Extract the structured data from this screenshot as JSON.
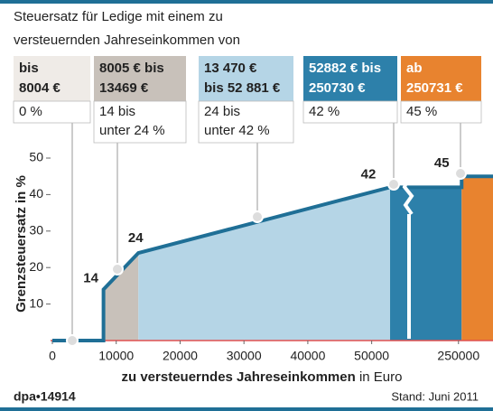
{
  "chart_data": {
    "type": "step",
    "title": [
      "Steuersatz für Ledige mit einem zu",
      "versteuernden Jahreseinkommen von"
    ],
    "brackets": [
      {
        "range": [
          "bis",
          "8004 €"
        ],
        "rate": [
          "0 %"
        ],
        "color": "#efebe7"
      },
      {
        "range": [
          "8005 € bis",
          "13469 €"
        ],
        "rate": [
          "14 bis",
          "unter 24 %"
        ],
        "color": "#c8c1ba"
      },
      {
        "range": [
          "13 470 €",
          "bis 52 881 €"
        ],
        "rate": [
          "24 bis",
          "unter 42 %"
        ],
        "color": "#b5d5e6"
      },
      {
        "range": [
          "52882 € bis",
          "250730 €"
        ],
        "rate": [
          "42 %"
        ],
        "color": "#2d80aa"
      },
      {
        "range": [
          "ab",
          "250731 €"
        ],
        "rate": [
          "45 %"
        ],
        "color": "#e8832f"
      }
    ],
    "ylabel": "Grenzsteuersatz in %",
    "xlabel": "zu versteuerndes Jahreseinkommen",
    "xlabel_unit": "in Euro",
    "series": [
      {
        "name": "Grenzsteuersatz",
        "color": "#1f6f96",
        "x": [
          0,
          8004,
          8005,
          13469,
          52881,
          250730,
          250731
        ],
        "values": [
          0,
          0,
          14,
          24,
          42,
          42,
          45
        ]
      }
    ],
    "xlim": [
      0,
      258000
    ],
    "xbreak": [
      55000,
      240000
    ],
    "xticks": [
      0,
      10000,
      20000,
      30000,
      40000,
      50000,
      250000
    ],
    "ylim": [
      0,
      50
    ],
    "yticks": [
      10,
      20,
      30,
      40,
      50
    ],
    "source": "dpa•14914",
    "note": "Stand: Juni 2011"
  }
}
